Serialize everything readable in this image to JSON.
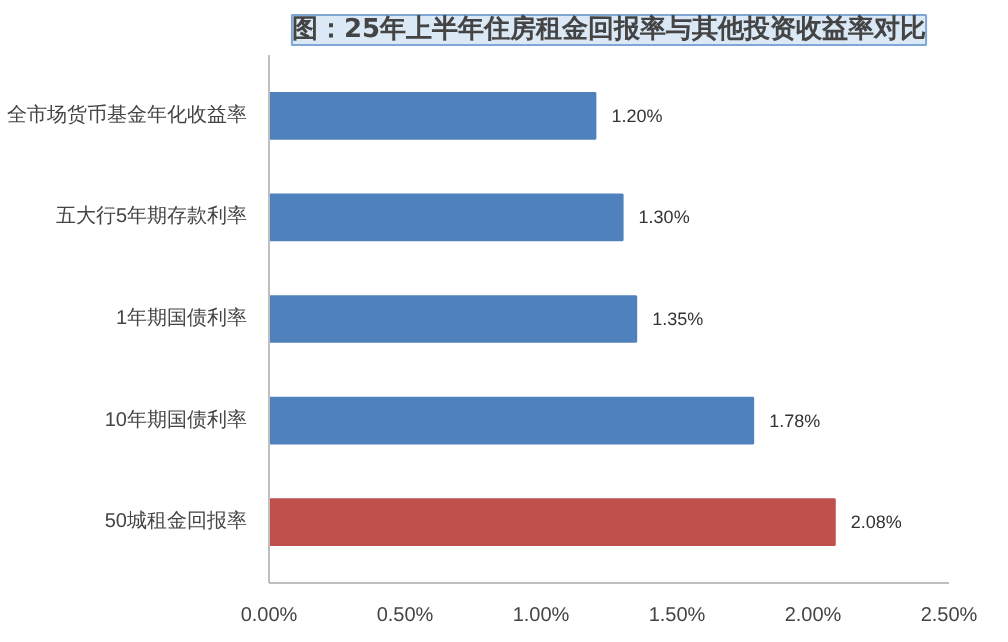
{
  "chart_data": {
    "type": "bar",
    "orientation": "horizontal",
    "title": "图：25年上半年住房租金回报率与其他投资收益率对比",
    "categories": [
      "全市场货币基金年化收益率",
      "五大行5年期存款利率",
      "1年期国债利率",
      "10年期国债利率",
      "50城租金回报率"
    ],
    "values": [
      1.2,
      1.3,
      1.35,
      1.78,
      2.08
    ],
    "colors": [
      "#4f81bd",
      "#4f81bd",
      "#4f81bd",
      "#4f81bd",
      "#c0504d"
    ],
    "value_labels": [
      "1.20%",
      "1.30%",
      "1.35%",
      "1.78%",
      "2.08%"
    ],
    "xlim": [
      0,
      2.5
    ],
    "xticks": [
      {
        "value": 0,
        "label": "0.00%"
      },
      {
        "value": 0.5,
        "label": "0.50%"
      },
      {
        "value": 1.0,
        "label": "1.00%"
      },
      {
        "value": 1.5,
        "label": "1.50%"
      },
      {
        "value": 2.0,
        "label": "2.00%"
      },
      {
        "value": 2.5,
        "label": "2.50%"
      }
    ],
    "grid": false
  }
}
